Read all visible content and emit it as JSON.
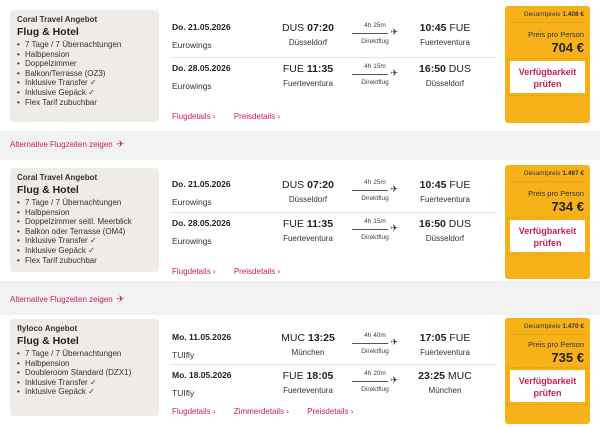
{
  "offers": [
    {
      "provider": "Coral Travel Angebot",
      "product": "Flug & Hotel",
      "features": [
        "7 Tage / 7 Übernachtungen",
        "Halbpension",
        "Doppelzimmer",
        "Balkon/Terrasse (OZ3)",
        "Inklusive Transfer ✓",
        "Inklusive Gepäck ✓",
        "Flex Tarif zubuchbar"
      ],
      "outbound": {
        "date": "Do. 21.05.2026",
        "airline": "Eurowings",
        "dep_code": "DUS",
        "dep_time": "07:20",
        "dep_city": "Düsseldorf",
        "duration": "4h 25m",
        "type": "Direktflug",
        "arr_time": "10:45",
        "arr_code": "FUE",
        "arr_city": "Fuerteventura"
      },
      "inbound": {
        "date": "Do. 28.05.2026",
        "airline": "Eurowings",
        "dep_code": "FUE",
        "dep_time": "11:35",
        "dep_city": "Fuerteventura",
        "duration": "4h 15m",
        "type": "Direktflug",
        "arr_time": "16:50",
        "arr_code": "DUS",
        "arr_city": "Düsseldorf"
      },
      "links": [
        "Flugdetails",
        "Preisdetails"
      ],
      "total_label": "Gesamtpreis",
      "total": "1.408 €",
      "pp_label": "Preis pro Person",
      "pp": "704 €",
      "button": "Verfügbarkeit prüfen"
    },
    {
      "provider": "Coral Travel Angebot",
      "product": "Flug & Hotel",
      "features": [
        "7 Tage / 7 Übernachtungen",
        "Halbpension",
        "Doppelzimmer seitl. Meerblick",
        "Balkon oder Terrasse (OM4)",
        "Inklusive Transfer ✓",
        "Inklusive Gepäck ✓",
        "Flex Tarif zubuchbar"
      ],
      "outbound": {
        "date": "Do. 21.05.2026",
        "airline": "Eurowings",
        "dep_code": "DUS",
        "dep_time": "07:20",
        "dep_city": "Düsseldorf",
        "duration": "4h 25m",
        "type": "Direktflug",
        "arr_time": "10:45",
        "arr_code": "FUE",
        "arr_city": "Fuerteventura"
      },
      "inbound": {
        "date": "Do. 28.05.2026",
        "airline": "Eurowings",
        "dep_code": "FUE",
        "dep_time": "11:35",
        "dep_city": "Fuerteventura",
        "duration": "4h 15m",
        "type": "Direktflug",
        "arr_time": "16:50",
        "arr_code": "DUS",
        "arr_city": "Düsseldorf"
      },
      "links": [
        "Flugdetails",
        "Preisdetails"
      ],
      "total_label": "Gesamtpreis",
      "total": "1.467 €",
      "pp_label": "Preis pro Person",
      "pp": "734 €",
      "button": "Verfügbarkeit prüfen"
    },
    {
      "provider": "flyloco Angebot",
      "product": "Flug & Hotel",
      "features": [
        "7 Tage / 7 Übernachtungen",
        "Halbpension",
        "Doubleroom Standard (DZX1)",
        "Inklusive Transfer ✓",
        "Inklusive Gepäck ✓"
      ],
      "outbound": {
        "date": "Mo. 11.05.2026",
        "airline": "TUIfly",
        "dep_code": "MUC",
        "dep_time": "13:25",
        "dep_city": "München",
        "duration": "4h 40m",
        "type": "Direktflug",
        "arr_time": "17:05",
        "arr_code": "FUE",
        "arr_city": "Fuerteventura"
      },
      "inbound": {
        "date": "Mo. 18.05.2026",
        "airline": "TUIfly",
        "dep_code": "FUE",
        "dep_time": "18:05",
        "dep_city": "Fuerteventura",
        "duration": "4h 20m",
        "type": "Direktflug",
        "arr_time": "23:25",
        "arr_code": "MUC",
        "arr_city": "München"
      },
      "links": [
        "Flugdetails",
        "Zimmerdetails",
        "Preisdetails"
      ],
      "total_label": "Gesamtpreis",
      "total": "1.470 €",
      "pp_label": "Preis pro Person",
      "pp": "735 €",
      "button": "Verfügbarkeit prüfen"
    }
  ],
  "alt_flights_label": "Alternative Flugzeiten zeigen",
  "icons": {
    "plane": "airplane-icon",
    "chevron": "chevron-right-icon"
  },
  "colors": {
    "accent": "#c7205a",
    "price_bg": "#f7b21a",
    "info_bg": "#efebe6"
  }
}
